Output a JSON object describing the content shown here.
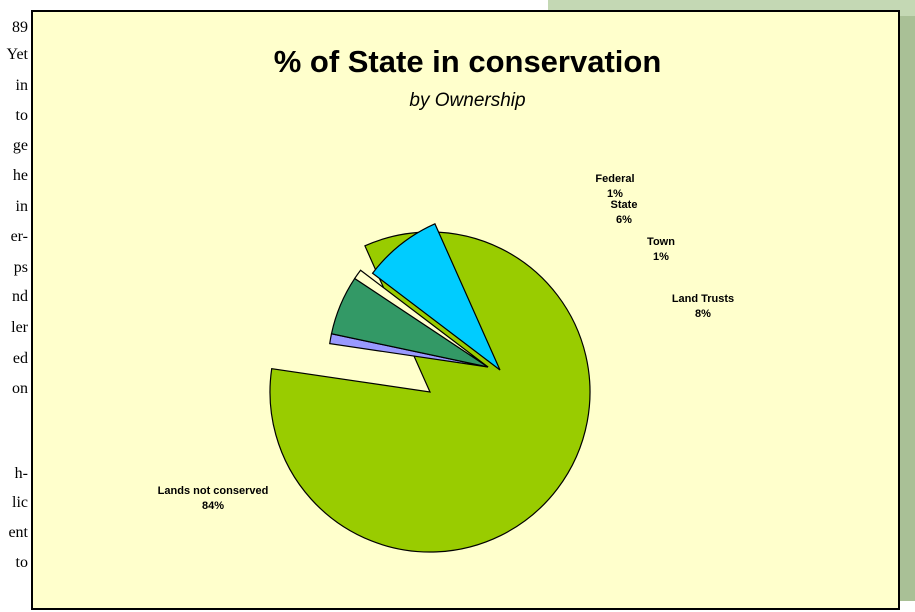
{
  "page_text_fragments": [
    "89",
    "Yet",
    "in",
    "to",
    "ge",
    "he",
    "in",
    "er-",
    "ps",
    "nd",
    "ler",
    "ed",
    "on",
    "h-",
    "lic",
    "ent",
    "to"
  ],
  "chart_data": {
    "type": "pie",
    "title": "% of State in conservation",
    "subtitle": "by Ownership",
    "slices": [
      {
        "label": "Lands not conserved",
        "percent_text": "84%",
        "value": 84,
        "color": "#99cc00",
        "exploded": false
      },
      {
        "label": "Federal",
        "percent_text": "1%",
        "value": 1,
        "color": "#9999ff",
        "exploded": true
      },
      {
        "label": "State",
        "percent_text": "6%",
        "value": 6,
        "color": "#339966",
        "exploded": true
      },
      {
        "label": "Town",
        "percent_text": "1%",
        "value": 1,
        "color": "#ffffcc",
        "exploded": true
      },
      {
        "label": "Land Trusts",
        "percent_text": "8%",
        "value": 8,
        "color": "#00ccff",
        "exploded": true
      }
    ],
    "background_color": "#ffffcc",
    "legend": "none"
  }
}
